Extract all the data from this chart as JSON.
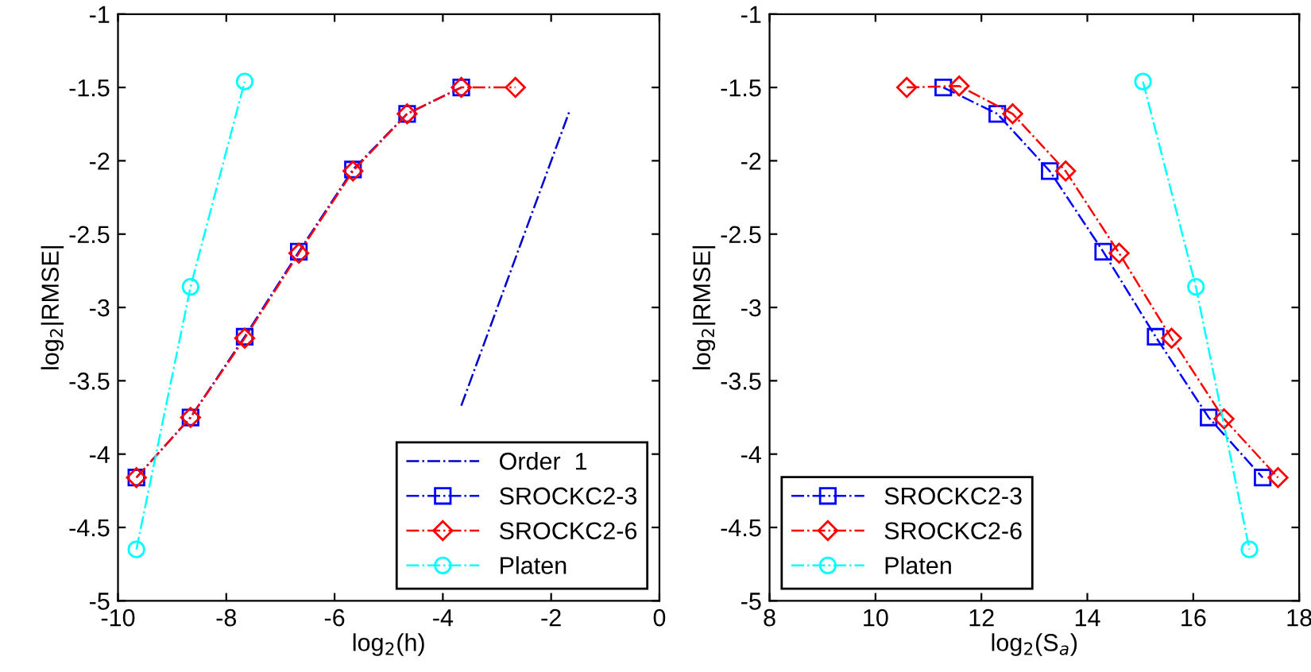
{
  "chart_data": [
    {
      "type": "line",
      "xlabel": "log$_{2}$(h)",
      "ylabel": "log$_{2}$|RMSE|",
      "xlim": [
        -10,
        0
      ],
      "ylim": [
        -5,
        -1
      ],
      "xticks": [
        -10,
        -8,
        -6,
        -4,
        -2,
        0
      ],
      "yticks": [
        -5,
        -4.5,
        -4,
        -3.5,
        -3,
        -2.5,
        -2,
        -1.5,
        -1
      ],
      "grid": false,
      "legend": "bottom right",
      "line_style": "dashdot",
      "series": [
        {
          "name": "Order  1",
          "color": "#0000cc",
          "marker": "none",
          "x": [
            -3.66,
            -1.67
          ],
          "values": [
            -3.67,
            -1.67
          ]
        },
        {
          "name": "SROCKC2-3",
          "color": "#0000ff",
          "marker": "square",
          "x": [
            -9.66,
            -8.66,
            -7.66,
            -6.66,
            -5.66,
            -4.66,
            -3.66
          ],
          "values": [
            -4.16,
            -3.75,
            -3.2,
            -2.62,
            -2.06,
            -1.68,
            -1.5
          ]
        },
        {
          "name": "SROCKC2-6",
          "color": "#ff0000",
          "marker": "diamond",
          "x": [
            -9.66,
            -8.66,
            -7.66,
            -6.66,
            -5.66,
            -4.66,
            -3.66,
            -2.66
          ],
          "values": [
            -4.16,
            -3.75,
            -3.21,
            -2.63,
            -2.07,
            -1.68,
            -1.5,
            -1.5
          ]
        },
        {
          "name": "Platen",
          "color": "#00ffff",
          "marker": "circle",
          "x": [
            -9.66,
            -8.66,
            -7.66
          ],
          "values": [
            -4.65,
            -2.86,
            -1.46
          ]
        }
      ]
    },
    {
      "type": "line",
      "xlabel": "log$_{2}$(S$_{a}$)",
      "ylabel": "log$_{2}$|RMSE|",
      "xlim": [
        8,
        18
      ],
      "ylim": [
        -5,
        -1
      ],
      "xticks": [
        8,
        10,
        12,
        14,
        16,
        18
      ],
      "yticks": [
        -5,
        -4.5,
        -4,
        -3.5,
        -3,
        -2.5,
        -2,
        -1.5,
        -1
      ],
      "grid": false,
      "legend": "bottom left",
      "line_style": "dashdot",
      "series": [
        {
          "name": "SROCKC2-3",
          "color": "#0000ff",
          "marker": "square",
          "x": [
            11.28,
            12.3,
            13.29,
            14.3,
            15.29,
            16.29,
            17.31
          ],
          "values": [
            -1.5,
            -1.68,
            -2.07,
            -2.62,
            -3.2,
            -3.75,
            -4.16
          ]
        },
        {
          "name": "SROCKC2-6",
          "color": "#ff0000",
          "marker": "diamond",
          "x": [
            10.59,
            11.58,
            12.59,
            13.59,
            14.6,
            15.59,
            16.58,
            17.6
          ],
          "values": [
            -1.5,
            -1.49,
            -1.68,
            -2.07,
            -2.63,
            -3.21,
            -3.76,
            -4.16
          ]
        },
        {
          "name": "Platen",
          "color": "#00ffff",
          "marker": "circle",
          "x": [
            15.05,
            16.05,
            17.06
          ],
          "values": [
            -1.46,
            -2.86,
            -4.65
          ]
        }
      ]
    }
  ]
}
